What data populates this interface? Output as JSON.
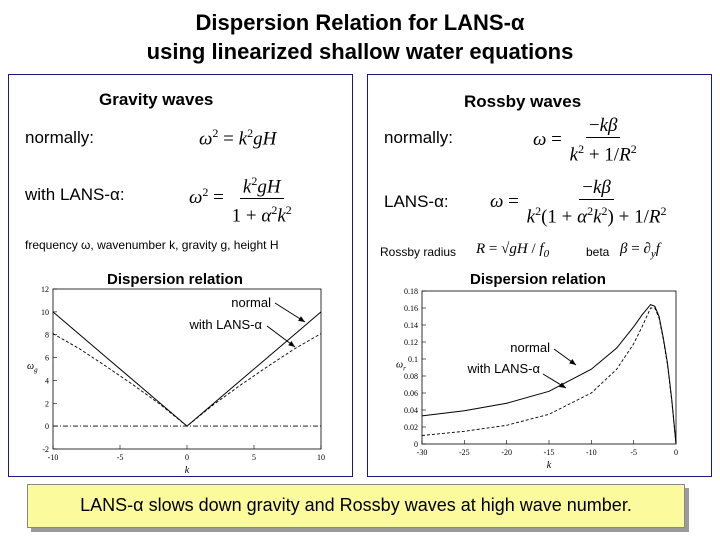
{
  "title": {
    "line1": "Dispersion Relation for LANS-α",
    "line2": "using linearized shallow water equations"
  },
  "gravity": {
    "heading": "Gravity waves",
    "normally_label": "normally:",
    "lans_label": "with LANS-α:",
    "note": "frequency ω, wavenumber k, gravity g, height H",
    "chart_title": "Dispersion relation",
    "annotation_normal": "normal",
    "annotation_lans": "with LANS-α"
  },
  "rossby": {
    "heading": "Rossby waves",
    "normally_label": "normally:",
    "lans_label": "LANS-α:",
    "radius_label": "Rossby radius",
    "beta_label": "beta",
    "chart_title": "Dispersion relation",
    "annotation_normal": "normal",
    "annotation_lans": "with LANS-α"
  },
  "conclusion": "LANS-α slows down gravity and Rossby waves at high wave number.",
  "chart_data": [
    {
      "type": "line",
      "title": "Dispersion relation",
      "xlabel": "k",
      "ylabel": "ω_g",
      "xlim": [
        -10,
        10
      ],
      "ylim": [
        -2,
        12
      ],
      "xticks": [
        "-10",
        "-5",
        "0",
        "5",
        "10"
      ],
      "yticks": [
        "-2",
        "0",
        "2",
        "4",
        "6",
        "8",
        "10",
        "12"
      ],
      "x": [
        -10,
        -8,
        -6,
        -4,
        -2,
        0,
        2,
        4,
        6,
        8,
        10
      ],
      "series": [
        {
          "name": "normal",
          "style": "solid",
          "values": [
            10,
            8,
            6,
            4,
            2,
            0,
            2,
            4,
            6,
            8,
            10
          ]
        },
        {
          "name": "with LANS-α",
          "style": "dashed",
          "values": [
            8.1,
            6.75,
            5.2,
            3.6,
            1.9,
            0,
            1.9,
            3.6,
            5.2,
            6.75,
            8.1
          ]
        },
        {
          "name": "zero",
          "style": "dashdot",
          "values": [
            0,
            0,
            0,
            0,
            0,
            0,
            0,
            0,
            0,
            0,
            0
          ]
        }
      ]
    },
    {
      "type": "line",
      "title": "Dispersion relation",
      "xlabel": "k",
      "ylabel": "ω_r",
      "xlim": [
        -30,
        0
      ],
      "ylim": [
        0,
        0.18
      ],
      "xticks": [
        "-30",
        "-25",
        "-20",
        "-15",
        "-10",
        "-5",
        "0"
      ],
      "yticks": [
        "0",
        "0.02",
        "0.04",
        "0.06",
        "0.08",
        "0.1",
        "0.12",
        "0.14",
        "0.16",
        "0.18"
      ],
      "x": [
        -30,
        -25,
        -20,
        -15,
        -10,
        -7,
        -5,
        -4,
        -3,
        -2.5,
        -2,
        -1.5,
        -1,
        -0.5,
        0
      ],
      "series": [
        {
          "name": "normal",
          "style": "solid",
          "values": [
            0.033,
            0.039,
            0.048,
            0.062,
            0.088,
            0.113,
            0.138,
            0.152,
            0.164,
            0.162,
            0.15,
            0.125,
            0.095,
            0.052,
            0
          ]
        },
        {
          "name": "with LANS-α",
          "style": "dashed",
          "values": [
            0.01,
            0.015,
            0.022,
            0.035,
            0.06,
            0.088,
            0.118,
            0.138,
            0.16,
            0.16,
            0.148,
            0.123,
            0.093,
            0.05,
            0
          ]
        }
      ]
    }
  ]
}
